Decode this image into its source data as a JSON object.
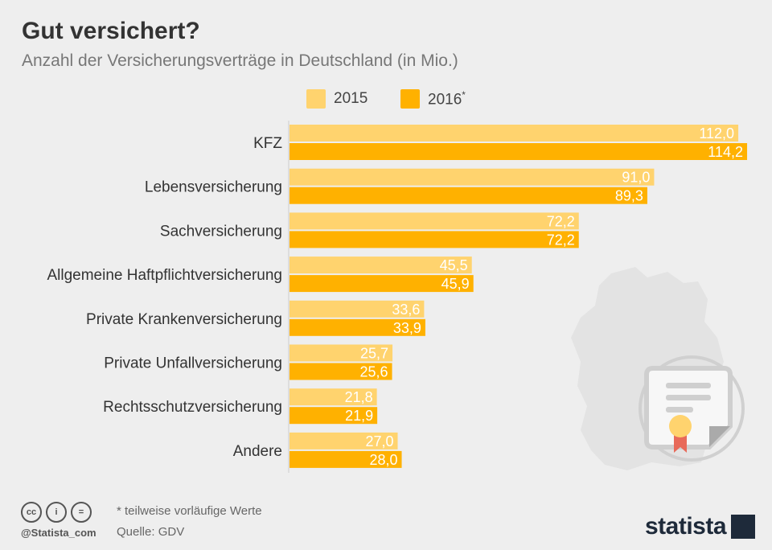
{
  "title": "Gut versichert?",
  "subtitle": "Anzahl der Versicherungsverträge in Deutschland (in Mio.)",
  "legend": [
    {
      "label": "2015",
      "sup": ""
    },
    {
      "label": "2016",
      "sup": "*"
    }
  ],
  "colors": {
    "series_2015": "#ffd36e",
    "series_2016": "#ffb100",
    "label_text": "#333333",
    "value_text": "#ffffff"
  },
  "chart_data": {
    "type": "bar",
    "orientation": "horizontal",
    "title": "Gut versichert?",
    "subtitle": "Anzahl der Versicherungsverträge in Deutschland (in Mio.)",
    "xlim": [
      0,
      116
    ],
    "categories": [
      "KFZ",
      "Lebensversicherung",
      "Sachversicherung",
      "Allgemeine Haftpflichtversicherung",
      "Private Krankenversicherung",
      "Private Unfallversicherung",
      "Rechtsschutzversicherung",
      "Andere"
    ],
    "series": [
      {
        "name": "2015",
        "values": [
          112.0,
          91.0,
          72.2,
          45.5,
          33.6,
          25.7,
          21.8,
          27.0
        ],
        "labels": [
          "112,0",
          "91,0",
          "72,2",
          "45,5",
          "33,6",
          "25,7",
          "21,8",
          "27,0"
        ]
      },
      {
        "name": "2016*",
        "values": [
          114.2,
          89.3,
          72.2,
          45.9,
          33.9,
          25.6,
          21.9,
          28.0
        ],
        "labels": [
          "114,2",
          "89,3",
          "72,2",
          "45,9",
          "33,9",
          "25,6",
          "21,9",
          "28,0"
        ]
      }
    ]
  },
  "footer": {
    "note": "* teilweise vorläufige Werte",
    "source": "Quelle: GDV",
    "handle": "@Statista_com",
    "brand": "statista",
    "cc_labels": [
      "cc",
      "i",
      "="
    ]
  }
}
